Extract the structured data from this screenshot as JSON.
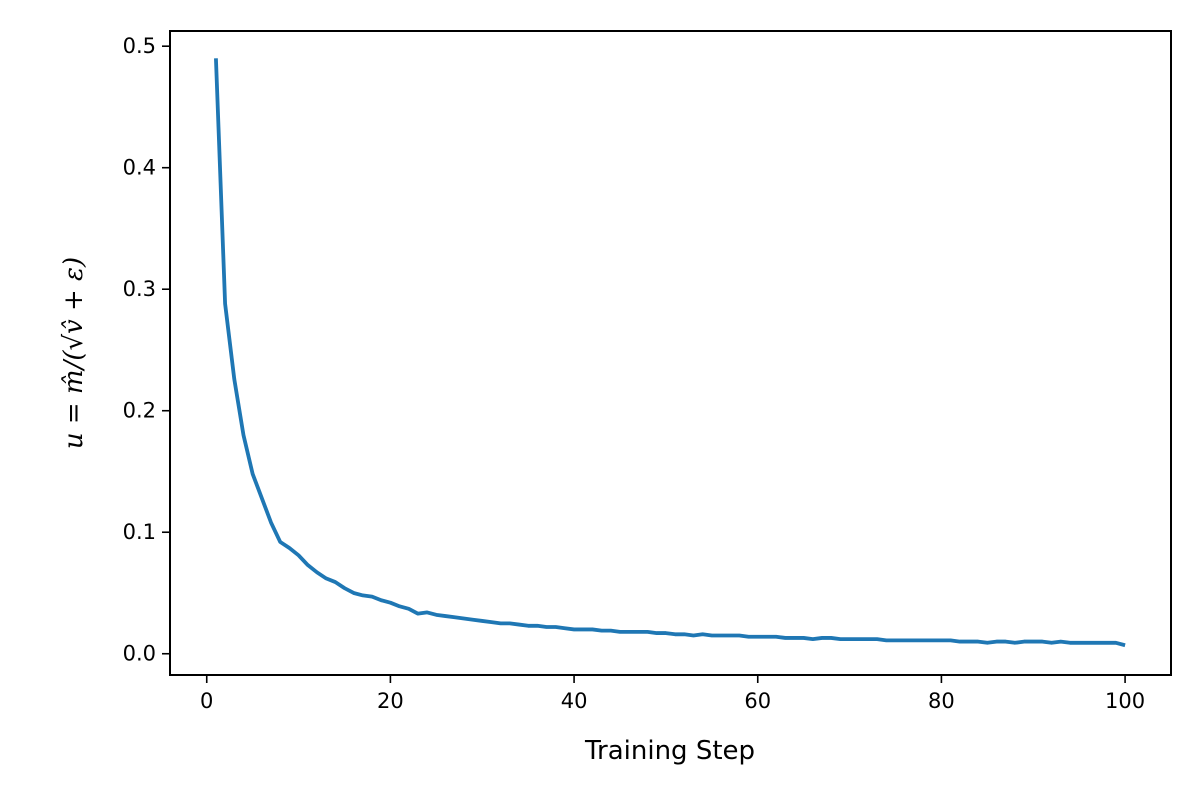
{
  "chart_data": {
    "type": "line",
    "title": "",
    "xlabel": "Training Step",
    "ylabel": "u = m̂/(√v̂ + ε)",
    "xlim": [
      -4,
      105
    ],
    "ylim": [
      -0.0175,
      0.5125
    ],
    "xticks": [
      0,
      20,
      40,
      60,
      80,
      100
    ],
    "yticks": [
      0.0,
      0.1,
      0.2,
      0.3,
      0.4,
      0.5
    ],
    "xtick_labels": [
      "0",
      "20",
      "40",
      "60",
      "80",
      "100"
    ],
    "ytick_labels": [
      "0.0",
      "0.1",
      "0.2",
      "0.3",
      "0.4",
      "0.5"
    ],
    "grid": false,
    "legend": null,
    "series": [
      {
        "color": "#1f77b4",
        "x": [
          1,
          2,
          3,
          4,
          5,
          6,
          7,
          8,
          9,
          10,
          11,
          12,
          13,
          14,
          15,
          16,
          17,
          18,
          19,
          20,
          21,
          22,
          23,
          24,
          25,
          26,
          27,
          28,
          29,
          30,
          31,
          32,
          33,
          34,
          35,
          36,
          37,
          38,
          39,
          40,
          41,
          42,
          43,
          44,
          45,
          46,
          47,
          48,
          49,
          50,
          51,
          52,
          53,
          54,
          55,
          56,
          57,
          58,
          59,
          60,
          61,
          62,
          63,
          64,
          65,
          66,
          67,
          68,
          69,
          70,
          71,
          72,
          73,
          74,
          75,
          76,
          77,
          78,
          79,
          80,
          81,
          82,
          83,
          84,
          85,
          86,
          87,
          88,
          89,
          90,
          91,
          92,
          93,
          94,
          95,
          96,
          97,
          98,
          99,
          100
        ],
        "y": [
          0.49,
          0.288,
          0.226,
          0.18,
          0.148,
          0.128,
          0.108,
          0.092,
          0.087,
          0.081,
          0.073,
          0.067,
          0.062,
          0.059,
          0.054,
          0.05,
          0.048,
          0.047,
          0.044,
          0.042,
          0.039,
          0.037,
          0.033,
          0.034,
          0.032,
          0.031,
          0.03,
          0.029,
          0.028,
          0.027,
          0.026,
          0.025,
          0.025,
          0.024,
          0.023,
          0.023,
          0.022,
          0.022,
          0.021,
          0.02,
          0.02,
          0.02,
          0.019,
          0.019,
          0.018,
          0.018,
          0.018,
          0.018,
          0.017,
          0.017,
          0.016,
          0.016,
          0.015,
          0.016,
          0.015,
          0.015,
          0.015,
          0.015,
          0.014,
          0.014,
          0.014,
          0.014,
          0.013,
          0.013,
          0.013,
          0.012,
          0.013,
          0.013,
          0.012,
          0.012,
          0.012,
          0.012,
          0.012,
          0.011,
          0.011,
          0.011,
          0.011,
          0.011,
          0.011,
          0.011,
          0.011,
          0.01,
          0.01,
          0.01,
          0.009,
          0.01,
          0.01,
          0.009,
          0.01,
          0.01,
          0.01,
          0.009,
          0.01,
          0.009,
          0.009,
          0.009,
          0.009,
          0.009,
          0.009,
          0.007
        ]
      }
    ]
  }
}
